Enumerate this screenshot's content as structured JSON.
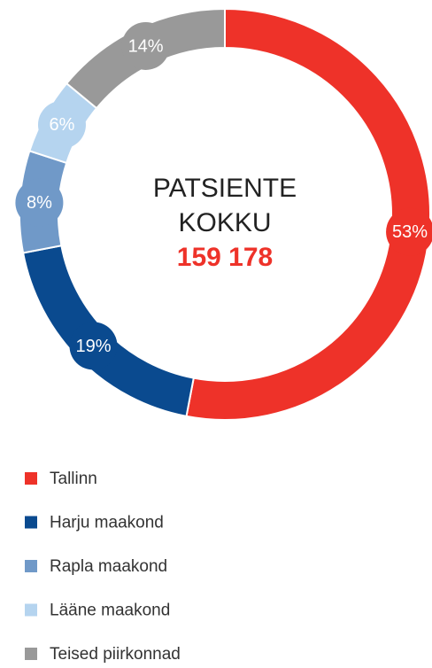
{
  "chart_data": {
    "type": "donut",
    "center_lines": [
      "PATSIENTE",
      "KOKKU"
    ],
    "total": 159178,
    "total_label": "159 178",
    "categories": [
      "Tallinn",
      "Harju maakond",
      "Rapla maakond",
      "Lääne maakond",
      "Teised piirkonnad"
    ],
    "values": [
      53,
      19,
      8,
      6,
      14
    ],
    "value_labels": [
      "53%",
      "19%",
      "8%",
      "6%",
      "14%"
    ],
    "colors": [
      "#ee3229",
      "#0a4a8f",
      "#7099c8",
      "#b5d4ef",
      "#999999"
    ],
    "legend": "bottom-left"
  }
}
